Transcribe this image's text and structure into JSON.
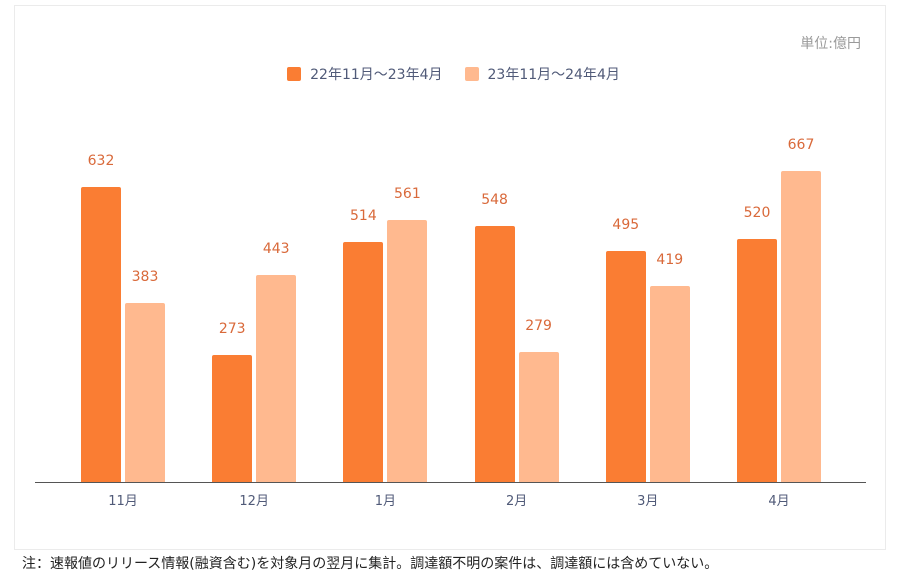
{
  "chart": {
    "unit_label": "単位:億円",
    "legend": [
      {
        "label": "22年11月～23年4月",
        "color": "#fa7d33"
      },
      {
        "label": "23年11月～24年4月",
        "color": "#ffb98f"
      }
    ],
    "value_label_color": "#d9693a",
    "note": "注：速報値のリリース情報(融資含む)を対象月の翌月に集計。調達額不明の案件は、調達額には含めていない。"
  },
  "chart_data": {
    "type": "bar",
    "title": "",
    "xlabel": "",
    "ylabel": "",
    "unit": "億円",
    "categories": [
      "11月",
      "12月",
      "1月",
      "2月",
      "3月",
      "4月"
    ],
    "series": [
      {
        "name": "22年11月～23年4月",
        "color": "#fa7d33",
        "values": [
          632,
          273,
          514,
          548,
          495,
          520
        ]
      },
      {
        "name": "23年11月～24年4月",
        "color": "#ffb98f",
        "values": [
          383,
          443,
          561,
          279,
          419,
          667
        ]
      }
    ],
    "ylim": [
      0,
      700
    ],
    "grid": false,
    "legend_position": "top",
    "data_labels": true
  }
}
